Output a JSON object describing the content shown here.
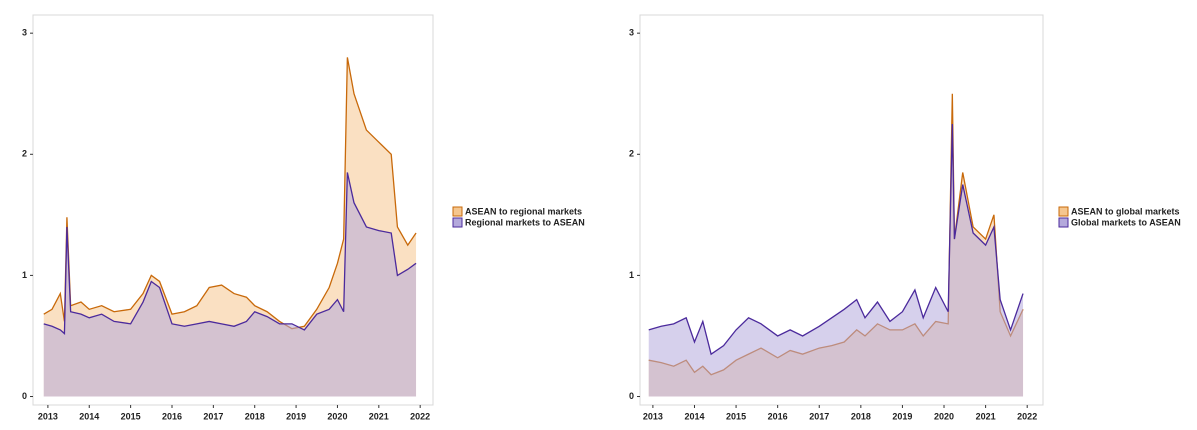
{
  "chart_data": [
    {
      "type": "area",
      "xlim": [
        2012.64,
        2022.31
      ],
      "ylim": [
        -0.07,
        3.15
      ],
      "xticks": [
        2013,
        2014,
        2015,
        2016,
        2017,
        2018,
        2019,
        2020,
        2021,
        2022
      ],
      "yticks": [
        0,
        1,
        2,
        3
      ],
      "x": [
        2012.9,
        2013.1,
        2013.3,
        2013.4,
        2013.46,
        2013.55,
        2013.8,
        2014.0,
        2014.3,
        2014.6,
        2015.0,
        2015.3,
        2015.5,
        2015.7,
        2016.0,
        2016.3,
        2016.6,
        2016.9,
        2017.2,
        2017.5,
        2017.8,
        2018.0,
        2018.3,
        2018.6,
        2018.9,
        2019.2,
        2019.5,
        2019.8,
        2020.0,
        2020.15,
        2020.24,
        2020.4,
        2020.7,
        2021.0,
        2021.3,
        2021.45,
        2021.7,
        2021.9
      ],
      "series": [
        {
          "name": "ASEAN to regional markets",
          "color": "#c8690a",
          "fill": "#f5c68f",
          "values": [
            0.68,
            0.72,
            0.85,
            0.62,
            1.48,
            0.75,
            0.78,
            0.72,
            0.75,
            0.7,
            0.72,
            0.85,
            1.0,
            0.95,
            0.68,
            0.7,
            0.75,
            0.9,
            0.92,
            0.85,
            0.82,
            0.75,
            0.7,
            0.62,
            0.56,
            0.58,
            0.72,
            0.9,
            1.1,
            1.3,
            2.8,
            2.5,
            2.2,
            2.1,
            2.0,
            1.4,
            1.25,
            1.35
          ]
        },
        {
          "name": "Regional markets to ASEAN",
          "color": "#4b2a9c",
          "fill": "#b4a9dc",
          "values": [
            0.6,
            0.58,
            0.55,
            0.52,
            1.4,
            0.7,
            0.68,
            0.65,
            0.68,
            0.62,
            0.6,
            0.78,
            0.95,
            0.9,
            0.6,
            0.58,
            0.6,
            0.62,
            0.6,
            0.58,
            0.62,
            0.7,
            0.66,
            0.6,
            0.6,
            0.55,
            0.68,
            0.72,
            0.8,
            0.7,
            1.85,
            1.6,
            1.4,
            1.37,
            1.35,
            1.0,
            1.05,
            1.1
          ]
        }
      ]
    },
    {
      "type": "area",
      "xlim": [
        2012.69,
        2022.38
      ],
      "ylim": [
        -0.07,
        3.15
      ],
      "xticks": [
        2013,
        2014,
        2015,
        2016,
        2017,
        2018,
        2019,
        2020,
        2021,
        2022
      ],
      "yticks": [
        0,
        1,
        2,
        3
      ],
      "x": [
        2012.9,
        2013.2,
        2013.5,
        2013.8,
        2014.0,
        2014.2,
        2014.4,
        2014.7,
        2015.0,
        2015.3,
        2015.6,
        2016.0,
        2016.3,
        2016.6,
        2017.0,
        2017.3,
        2017.6,
        2017.9,
        2018.1,
        2018.4,
        2018.7,
        2019.0,
        2019.3,
        2019.5,
        2019.8,
        2020.1,
        2020.2,
        2020.25,
        2020.45,
        2020.7,
        2021.0,
        2021.2,
        2021.35,
        2021.6,
        2021.9
      ],
      "series": [
        {
          "name": "ASEAN to global markets",
          "color": "#c8690a",
          "fill": "#f5c68f",
          "values": [
            0.3,
            0.28,
            0.25,
            0.3,
            0.2,
            0.25,
            0.18,
            0.22,
            0.3,
            0.35,
            0.4,
            0.32,
            0.38,
            0.35,
            0.4,
            0.42,
            0.45,
            0.55,
            0.5,
            0.6,
            0.55,
            0.55,
            0.6,
            0.5,
            0.62,
            0.6,
            2.5,
            1.3,
            1.85,
            1.4,
            1.3,
            1.5,
            0.7,
            0.5,
            0.72
          ]
        },
        {
          "name": "Global markets to ASEAN",
          "color": "#4b2a9c",
          "fill": "#b4a9dc",
          "values": [
            0.55,
            0.58,
            0.6,
            0.65,
            0.45,
            0.62,
            0.35,
            0.42,
            0.55,
            0.65,
            0.6,
            0.5,
            0.55,
            0.5,
            0.58,
            0.65,
            0.72,
            0.8,
            0.65,
            0.78,
            0.62,
            0.7,
            0.88,
            0.65,
            0.9,
            0.7,
            2.25,
            1.3,
            1.75,
            1.35,
            1.25,
            1.4,
            0.8,
            0.55,
            0.85
          ]
        }
      ]
    }
  ]
}
